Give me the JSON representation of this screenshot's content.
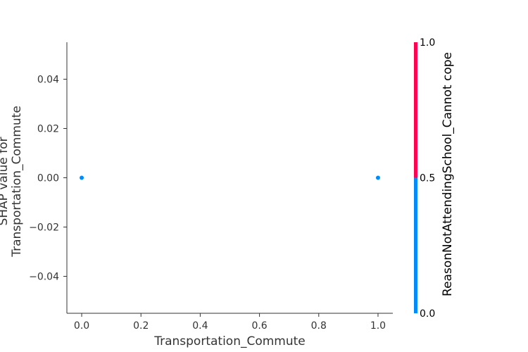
{
  "chart_data": {
    "type": "scatter",
    "title": "",
    "xlabel": "Transportation_Commute",
    "ylabel_lines": [
      "SHAP value for",
      "Transportation_Commute"
    ],
    "xlim": [
      -0.05,
      1.05
    ],
    "ylim": [
      -0.055,
      0.055
    ],
    "x_ticks": [
      0.0,
      0.2,
      0.4,
      0.6,
      0.8,
      1.0
    ],
    "x_tick_labels": [
      "0.0",
      "0.2",
      "0.4",
      "0.6",
      "0.8",
      "1.0"
    ],
    "y_ticks": [
      0.04,
      0.02,
      0.0,
      -0.02,
      -0.04
    ],
    "y_tick_labels": [
      "0.04",
      "0.02",
      "0.00",
      "−0.02",
      "−0.04"
    ],
    "points": [
      {
        "x": 0.0,
        "y": 0.0,
        "color_value": 0.0
      },
      {
        "x": 1.0,
        "y": 0.0,
        "color_value": 0.0
      }
    ],
    "grid": false,
    "colorbar": {
      "label": "ReasonNotAttendingSchool_Cannot cope",
      "ticks": [
        1.0,
        0.5,
        0.0
      ],
      "tick_labels": [
        "1.0",
        "0.5",
        "0.0"
      ],
      "range": [
        0.0,
        1.0
      ],
      "color_low": "#008bfb",
      "color_high": "#ff0052"
    },
    "colors": {
      "axis": "#333333",
      "point": "#008bfb"
    }
  }
}
